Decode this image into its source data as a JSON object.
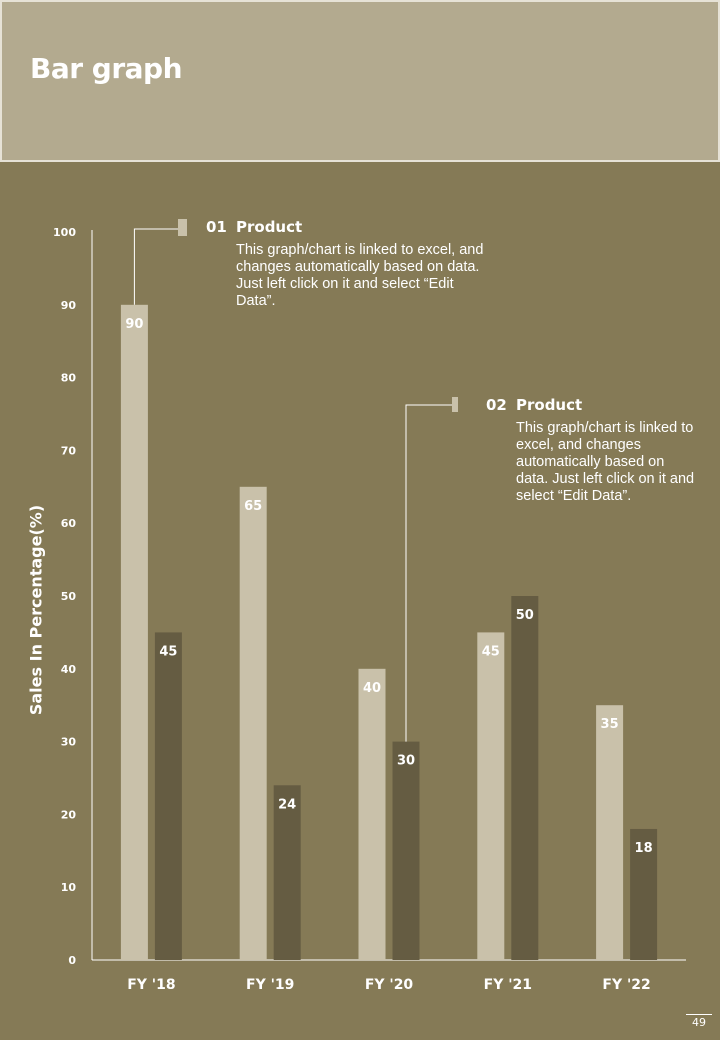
{
  "header": {
    "title": "Bar graph"
  },
  "chart_data": {
    "type": "bar",
    "title": "",
    "xlabel": "",
    "ylabel": "Sales In Percentage(%)",
    "ylim": [
      0,
      100
    ],
    "yticks": [
      0,
      10,
      20,
      30,
      40,
      50,
      60,
      70,
      80,
      90,
      100
    ],
    "categories": [
      "FY '18",
      "FY '19",
      "FY '20",
      "FY '21",
      "FY '22"
    ],
    "series": [
      {
        "name": "01 Product",
        "color": "#c9c1aa",
        "values": [
          90,
          65,
          40,
          45,
          35
        ]
      },
      {
        "name": "02 Product",
        "color": "#655c42",
        "values": [
          45,
          24,
          30,
          50,
          18
        ]
      }
    ],
    "grid": false
  },
  "callouts": [
    {
      "number": "01",
      "title": "Product",
      "text": "This graph/chart is linked to excel, and changes automatically based on data. Just left click on it and select “Edit Data”."
    },
    {
      "number": "02",
      "title": "Product",
      "text": "This graph/chart is linked to excel, and changes automatically based on data. Just left click on it and select “Edit Data”."
    }
  ],
  "page_number": "49"
}
